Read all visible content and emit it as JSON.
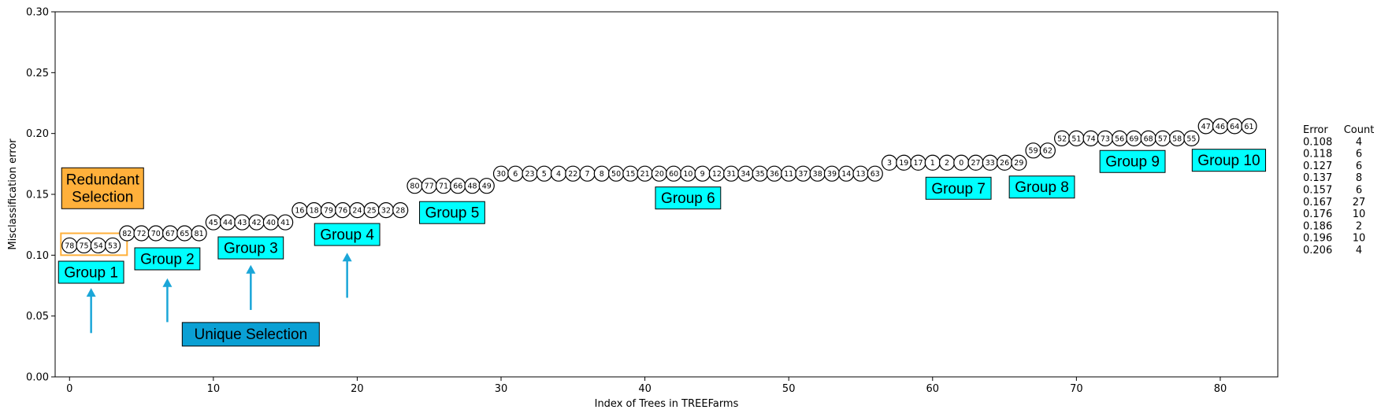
{
  "chart_data": {
    "type": "scatter",
    "title": "",
    "xlabel": "Index of Trees in TREEFarms",
    "ylabel": "Misclassification error",
    "xlim": [
      -1,
      84
    ],
    "ylim": [
      0,
      0.3
    ],
    "xticks": [
      0,
      10,
      20,
      30,
      40,
      50,
      60,
      70,
      80
    ],
    "yticks": [
      0.0,
      0.05,
      0.1,
      0.15,
      0.2,
      0.25,
      0.3
    ],
    "xtick_labels": [
      "0",
      "10",
      "20",
      "30",
      "40",
      "50",
      "60",
      "70",
      "80"
    ],
    "ytick_labels": [
      "0.00",
      "0.05",
      "0.10",
      "0.15",
      "0.20",
      "0.25",
      "0.30"
    ],
    "grid": false,
    "levels": [
      {
        "error": 0.108,
        "labels": [
          "78",
          "75",
          "54",
          "53"
        ]
      },
      {
        "error": 0.118,
        "labels": [
          "82",
          "72",
          "70",
          "67",
          "65",
          "81"
        ]
      },
      {
        "error": 0.127,
        "labels": [
          "45",
          "44",
          "43",
          "42",
          "40",
          "41"
        ]
      },
      {
        "error": 0.137,
        "labels": [
          "16",
          "18",
          "79",
          "76",
          "24",
          "25",
          "32",
          "28"
        ]
      },
      {
        "error": 0.157,
        "labels": [
          "80",
          "77",
          "71",
          "66",
          "48",
          "49"
        ]
      },
      {
        "error": 0.167,
        "labels": [
          "30",
          "6",
          "23",
          "5",
          "4",
          "22",
          "7",
          "8",
          "50",
          "15",
          "21",
          "20",
          "60",
          "10",
          "9",
          "12",
          "31",
          "34",
          "35",
          "36",
          "11",
          "37",
          "38",
          "39",
          "14",
          "13",
          "63"
        ]
      },
      {
        "error": 0.176,
        "labels": [
          "3",
          "19",
          "17",
          "1",
          "2",
          "0",
          "27",
          "33",
          "26",
          "29"
        ]
      },
      {
        "error": 0.186,
        "labels": [
          "59",
          "62"
        ]
      },
      {
        "error": 0.196,
        "labels": [
          "52",
          "51",
          "74",
          "73",
          "56",
          "69",
          "68",
          "57",
          "58",
          "55"
        ]
      },
      {
        "error": 0.206,
        "labels": [
          "47",
          "46",
          "64",
          "61"
        ]
      }
    ],
    "groups": [
      {
        "label": "Group 1",
        "x": 1.5,
        "y": 0.086
      },
      {
        "label": "Group 2",
        "x": 6.8,
        "y": 0.097
      },
      {
        "label": "Group 3",
        "x": 12.6,
        "y": 0.106
      },
      {
        "label": "Group 4",
        "x": 19.3,
        "y": 0.117
      },
      {
        "label": "Group 5",
        "x": 26.6,
        "y": 0.135
      },
      {
        "label": "Group 6",
        "x": 43.0,
        "y": 0.147
      },
      {
        "label": "Group 7",
        "x": 61.8,
        "y": 0.155
      },
      {
        "label": "Group 8",
        "x": 67.6,
        "y": 0.156
      },
      {
        "label": "Group 9",
        "x": 73.9,
        "y": 0.177
      },
      {
        "label": "Group 10",
        "x": 80.6,
        "y": 0.178
      }
    ],
    "annotations": [
      {
        "text": "Redundant\nSelection",
        "x": 2.3,
        "y": 0.155,
        "color": "#FFB03B"
      },
      {
        "text": "Unique Selection",
        "x": 12.6,
        "y": 0.035,
        "color": "#0AA0D4"
      }
    ],
    "redundant_box": {
      "x_range": [
        -0.6,
        4.0
      ],
      "y_range": [
        0.1,
        0.118
      ],
      "color": "#FFB03B"
    },
    "arrows": [
      {
        "x": 1.5,
        "y_from": 0.036,
        "y_to": 0.073
      },
      {
        "x": 6.8,
        "y_from": 0.045,
        "y_to": 0.081
      },
      {
        "x": 12.6,
        "y_from": 0.055,
        "y_to": 0.092
      },
      {
        "x": 19.3,
        "y_from": 0.065,
        "y_to": 0.102
      }
    ],
    "arrow_color": "#1AA6D8",
    "group_box_color": "#00FFFF",
    "table": {
      "headers": [
        "Error",
        "Count"
      ],
      "rows": [
        [
          "0.108",
          "4"
        ],
        [
          "0.118",
          "6"
        ],
        [
          "0.127",
          "6"
        ],
        [
          "0.137",
          "8"
        ],
        [
          "0.157",
          "6"
        ],
        [
          "0.167",
          "27"
        ],
        [
          "0.176",
          "10"
        ],
        [
          "0.186",
          "2"
        ],
        [
          "0.196",
          "10"
        ],
        [
          "0.206",
          "4"
        ]
      ]
    }
  }
}
